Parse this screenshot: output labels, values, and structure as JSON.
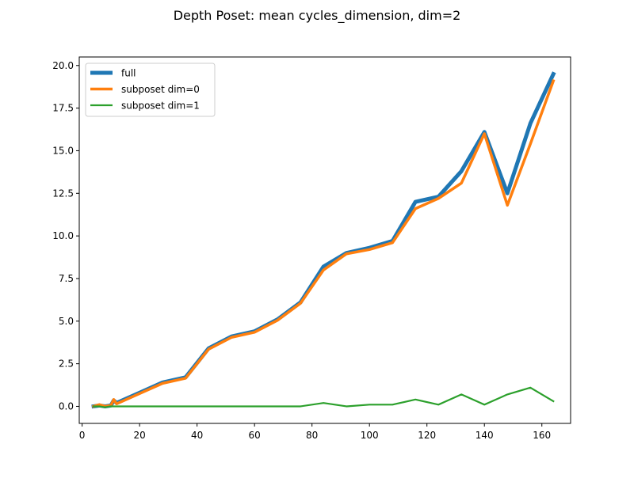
{
  "chart_data": {
    "type": "line",
    "title": "Depth Poset: mean cycles_dimension, dim=2",
    "xlabel": "",
    "ylabel": "",
    "xlim": [
      -1.0,
      170.0
    ],
    "ylim": [
      -1.0,
      20.5
    ],
    "xticks": [
      0,
      20,
      40,
      60,
      80,
      100,
      120,
      140,
      160
    ],
    "yticks": [
      0.0,
      2.5,
      5.0,
      7.5,
      10.0,
      12.5,
      15.0,
      17.5,
      20.0
    ],
    "xtick_labels": [
      "0",
      "20",
      "40",
      "60",
      "80",
      "100",
      "120",
      "140",
      "160"
    ],
    "ytick_labels": [
      "0.0",
      "2.5",
      "5.0",
      "7.5",
      "10.0",
      "12.5",
      "15.0",
      "17.5",
      "20.0"
    ],
    "grid": false,
    "legend_position": "upper-left",
    "series": [
      {
        "name": "full",
        "color": "#1f77b4",
        "x": [
          4,
          6,
          8,
          10,
          11,
          12,
          20,
          28,
          36,
          44,
          52,
          60,
          68,
          76,
          84,
          92,
          100,
          108,
          116,
          124,
          132,
          140,
          148,
          156,
          164
        ],
        "y": [
          0.0,
          0.05,
          0.0,
          0.05,
          0.35,
          0.2,
          0.8,
          1.4,
          1.7,
          3.4,
          4.1,
          4.4,
          5.1,
          6.1,
          8.2,
          9.0,
          9.3,
          9.7,
          12.0,
          12.3,
          13.8,
          16.1,
          12.5,
          16.6,
          19.5
        ]
      },
      {
        "name": "subposet dim=0",
        "color": "#ff7f0e",
        "x": [
          4,
          6,
          8,
          10,
          11,
          12,
          20,
          28,
          36,
          44,
          52,
          60,
          68,
          76,
          84,
          92,
          100,
          108,
          116,
          124,
          132,
          140,
          148,
          156,
          164
        ],
        "y": [
          0.0,
          0.1,
          0.0,
          0.05,
          0.4,
          0.15,
          0.75,
          1.35,
          1.65,
          3.35,
          4.05,
          4.35,
          5.05,
          6.05,
          8.0,
          8.95,
          9.2,
          9.6,
          11.6,
          12.2,
          13.1,
          16.0,
          11.8,
          15.4,
          19.1
        ]
      },
      {
        "name": "subposet dim=1",
        "color": "#2ca02c",
        "x": [
          4,
          6,
          8,
          10,
          11,
          12,
          20,
          28,
          36,
          44,
          52,
          60,
          68,
          76,
          84,
          92,
          100,
          108,
          116,
          124,
          132,
          140,
          148,
          156,
          164
        ],
        "y": [
          0.0,
          0.0,
          -0.05,
          0.0,
          0.0,
          0.0,
          0.0,
          0.0,
          0.0,
          0.0,
          0.0,
          0.0,
          0.0,
          0.0,
          0.2,
          0.0,
          0.1,
          0.1,
          0.4,
          0.1,
          0.7,
          0.1,
          0.7,
          1.1,
          0.3
        ]
      }
    ]
  }
}
